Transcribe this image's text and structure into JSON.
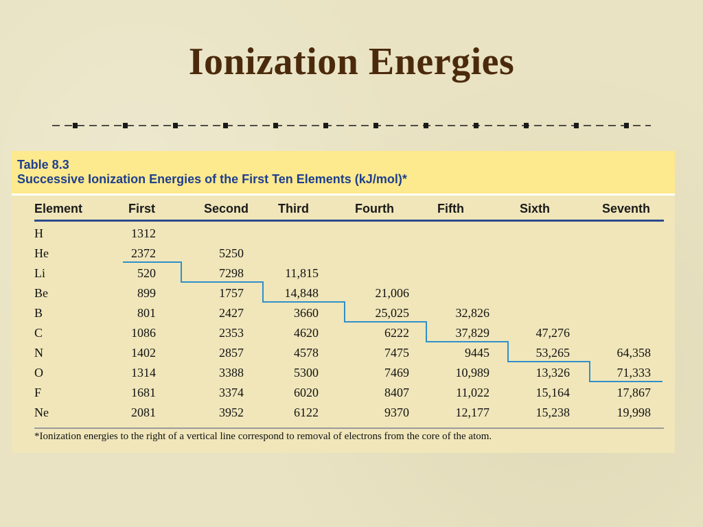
{
  "slide": {
    "title": "Ionization Energies"
  },
  "table": {
    "number": "Table 8.3",
    "caption": "Successive Ionization Energies of the First Ten Elements (kJ/mol)*",
    "columns": [
      "Element",
      "First",
      "Second",
      "Third",
      "Fourth",
      "Fifth",
      "Sixth",
      "Seventh"
    ],
    "rows": [
      [
        "H",
        "1312",
        "",
        "",
        "",
        "",
        "",
        ""
      ],
      [
        "He",
        "2372",
        "5250",
        "",
        "",
        "",
        "",
        ""
      ],
      [
        "Li",
        "520",
        "7298",
        "11,815",
        "",
        "",
        "",
        ""
      ],
      [
        "Be",
        "899",
        "1757",
        "14,848",
        "21,006",
        "",
        "",
        ""
      ],
      [
        "B",
        "801",
        "2427",
        "3660",
        "25,025",
        "32,826",
        "",
        ""
      ],
      [
        "C",
        "1086",
        "2353",
        "4620",
        "6222",
        "37,829",
        "47,276",
        ""
      ],
      [
        "N",
        "1402",
        "2857",
        "4578",
        "7475",
        "9445",
        "53,265",
        "64,358"
      ],
      [
        "O",
        "1314",
        "3388",
        "5300",
        "7469",
        "10,989",
        "13,326",
        "71,333"
      ],
      [
        "F",
        "1681",
        "3374",
        "6020",
        "8407",
        "11,022",
        "15,164",
        "17,867"
      ],
      [
        "Ne",
        "2081",
        "3952",
        "6122",
        "9370",
        "12,177",
        "15,238",
        "19,998"
      ]
    ],
    "footnote": "*Ionization energies to the right of a vertical line correspond to removal of electrons from the core of the atom."
  },
  "colors": {
    "title": "#4b2a0c",
    "caption": "#1f3f8c",
    "header_band": "#fde98e",
    "panel": "#f0e6ba",
    "stair_line": "#2f8fc9"
  }
}
